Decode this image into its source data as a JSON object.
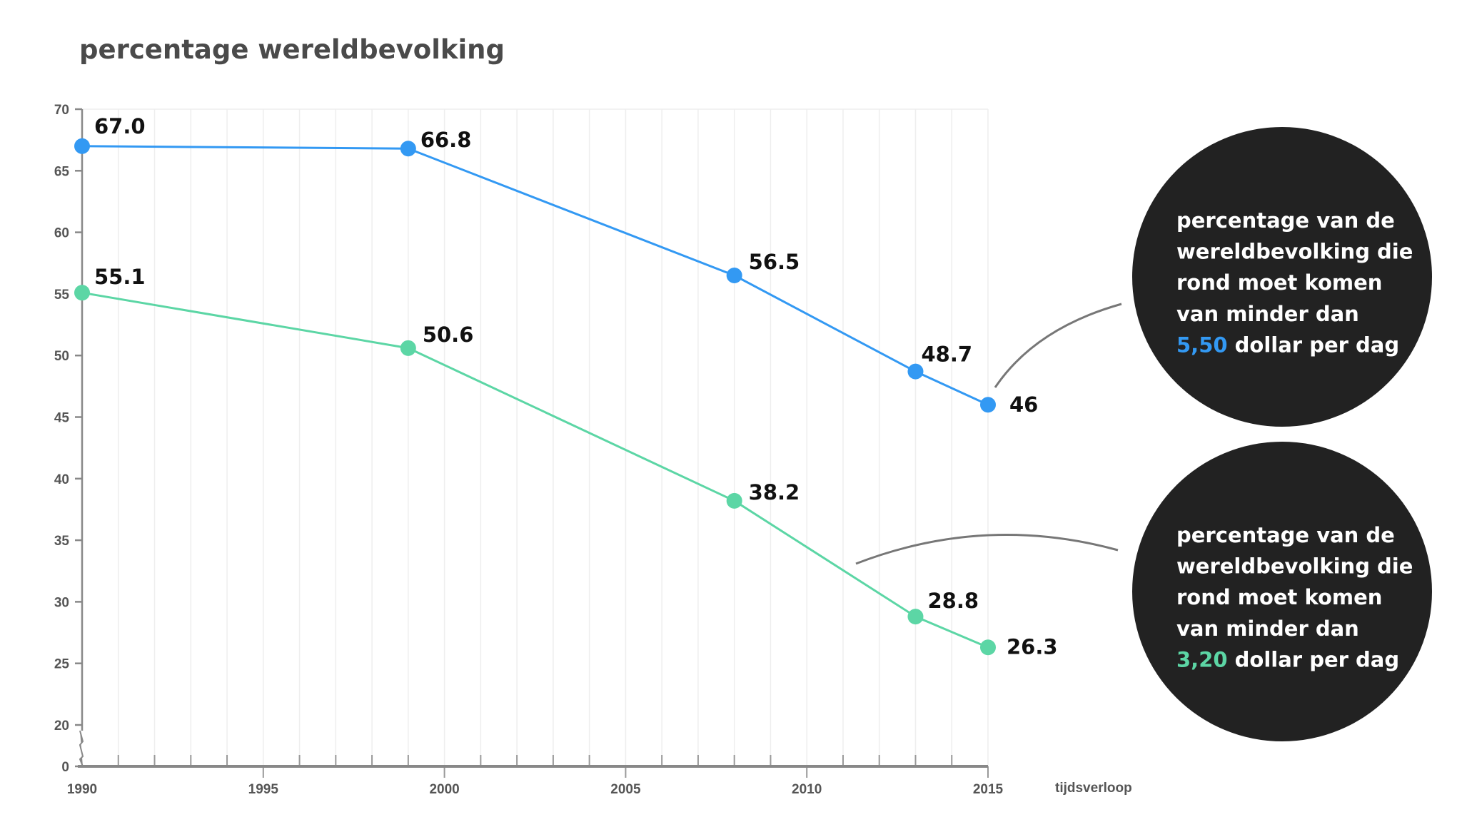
{
  "chart_data": {
    "type": "line",
    "title": "percentage wereldbevolking",
    "xlabel": "tijdsverloop",
    "ylabel": "",
    "xlim": [
      1990,
      2015
    ],
    "ylim": [
      0,
      70
    ],
    "y_axis_break": [
      0,
      20
    ],
    "x_ticks": [
      "1990",
      "1995",
      "2000",
      "2005",
      "2010",
      "2015"
    ],
    "y_ticks": [
      "0",
      "20",
      "25",
      "30",
      "35",
      "40",
      "45",
      "50",
      "55",
      "60",
      "65",
      "70"
    ],
    "grid": "vertical, yearly",
    "series": [
      {
        "key": "blue",
        "color": "#3399f3",
        "points": [
          {
            "x": 1990,
            "y": 67.0,
            "label": "67.0"
          },
          {
            "x": 1999,
            "y": 66.8,
            "label": "66.8"
          },
          {
            "x": 2008,
            "y": 56.5,
            "label": "56.5"
          },
          {
            "x": 2013,
            "y": 48.7,
            "label": "48.7"
          },
          {
            "x": 2015,
            "y": 46,
            "label": "46"
          }
        ]
      },
      {
        "key": "green",
        "color": "#5cd6a5",
        "points": [
          {
            "x": 1990,
            "y": 55.1,
            "label": "55.1"
          },
          {
            "x": 1999,
            "y": 50.6,
            "label": "50.6"
          },
          {
            "x": 2008,
            "y": 38.2,
            "label": "38.2"
          },
          {
            "x": 2013,
            "y": 28.8,
            "label": "28.8"
          },
          {
            "x": 2015,
            "y": 26.3,
            "label": "26.3"
          }
        ]
      }
    ],
    "annotations": [
      {
        "series": "blue",
        "lines": [
          "percentage van de",
          "wereldbevolking die",
          "rond moet komen",
          "van minder dan"
        ],
        "highlight": "5,50",
        "rest": " dollar per dag",
        "bubble_color": "#222222"
      },
      {
        "series": "green",
        "lines": [
          "percentage van de",
          "wereldbevolking die",
          "rond moet komen",
          "van minder dan"
        ],
        "highlight": "3,20",
        "rest": " dollar per dag",
        "bubble_color": "#222222"
      }
    ]
  }
}
